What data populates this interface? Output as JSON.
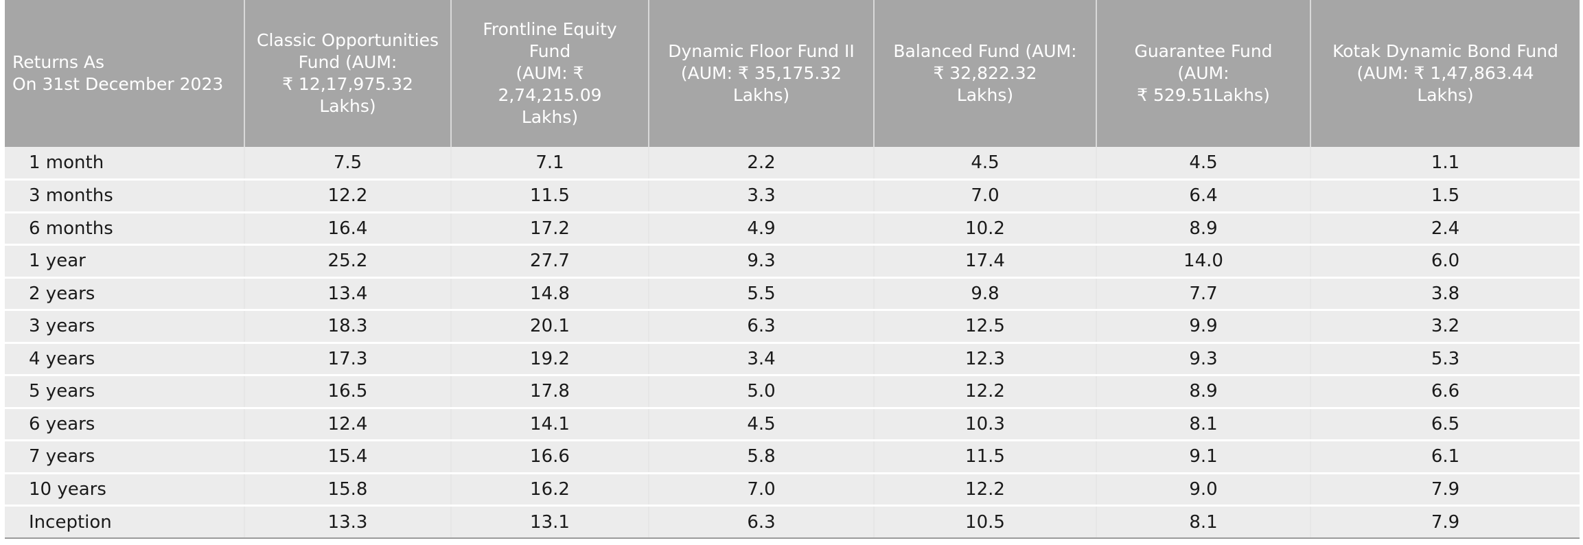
{
  "table": {
    "header": {
      "period": [
        "Returns As",
        "On 31st December 2023"
      ],
      "funds": [
        [
          "Classic Opportunities",
          "Fund (AUM:",
          "₹ 12,17,975.32",
          "Lakhs)"
        ],
        [
          "Frontline Equity Fund",
          "(AUM:  ₹ 2,74,215.09",
          "Lakhs)"
        ],
        [
          "Dynamic Floor Fund II",
          "(AUM: ₹ 35,175.32",
          "Lakhs)"
        ],
        [
          "Balanced Fund (AUM:",
          "₹ 32,822.32",
          "Lakhs)"
        ],
        [
          "Guarantee Fund (AUM:",
          "₹ 529.51Lakhs)"
        ],
        [
          "Kotak Dynamic Bond Fund",
          "(AUM:  ₹ 1,47,863.44",
          "Lakhs)"
        ]
      ]
    },
    "rows": [
      {
        "period": "1 month",
        "values": [
          "7.5",
          "7.1",
          "2.2",
          "4.5",
          "4.5",
          "1.1"
        ]
      },
      {
        "period": "3 months",
        "values": [
          "12.2",
          "11.5",
          "3.3",
          "7.0",
          "6.4",
          "1.5"
        ]
      },
      {
        "period": "6 months",
        "values": [
          "16.4",
          "17.2",
          "4.9",
          "10.2",
          "8.9",
          "2.4"
        ]
      },
      {
        "period": "1 year",
        "values": [
          "25.2",
          "27.7",
          "9.3",
          "17.4",
          "14.0",
          "6.0"
        ]
      },
      {
        "period": "2 years",
        "values": [
          "13.4",
          "14.8",
          "5.5",
          "9.8",
          "7.7",
          "3.8"
        ]
      },
      {
        "period": "3 years",
        "values": [
          "18.3",
          "20.1",
          "6.3",
          "12.5",
          "9.9",
          "3.2"
        ]
      },
      {
        "period": "4 years",
        "values": [
          "17.3",
          "19.2",
          "3.4",
          "12.3",
          "9.3",
          "5.3"
        ]
      },
      {
        "period": "5 years",
        "values": [
          "16.5",
          "17.8",
          "5.0",
          "12.2",
          "8.9",
          "6.6"
        ]
      },
      {
        "period": "6 years",
        "values": [
          "12.4",
          "14.1",
          "4.5",
          "10.3",
          "8.1",
          "6.5"
        ]
      },
      {
        "period": "7 years",
        "values": [
          "15.4",
          "16.6",
          "5.8",
          "11.5",
          "9.1",
          "6.1"
        ]
      },
      {
        "period": "10 years",
        "values": [
          "15.8",
          "16.2",
          "7.0",
          "12.2",
          "9.0",
          "7.9"
        ]
      },
      {
        "period": "Inception",
        "values": [
          "13.3",
          "13.1",
          "6.3",
          "10.5",
          "8.1",
          "7.9"
        ]
      }
    ]
  },
  "colors": {
    "header_bg": "#a6a6a6",
    "header_text": "#ffffff",
    "row_bg": "#ececec",
    "row_separator": "#ffffff"
  }
}
